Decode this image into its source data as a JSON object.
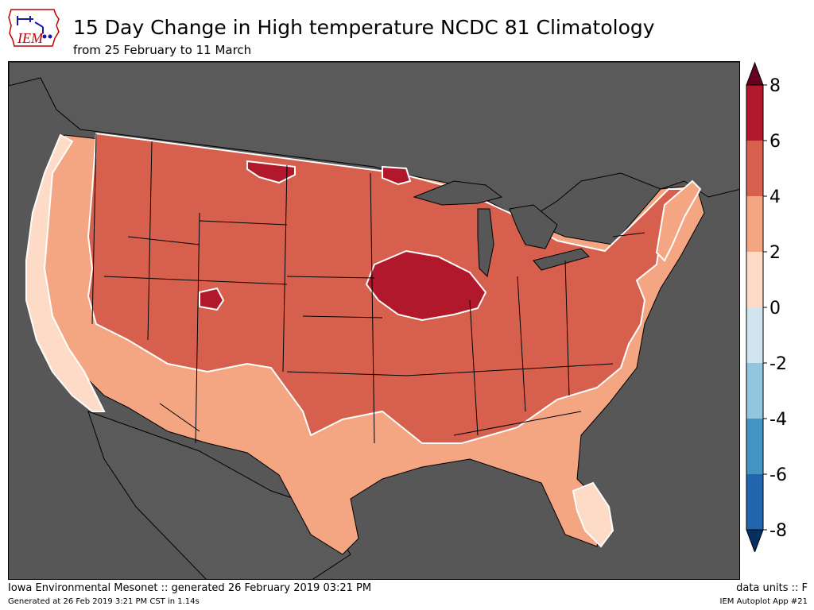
{
  "header": {
    "title": "15 Day Change in High temperature NCDC 81 Climatology",
    "subtitle": "from 25 February to 11 March"
  },
  "logo": {
    "text": "IEM",
    "color": "#c00000",
    "accent": "#1a1aa8"
  },
  "colorbar": {
    "tick_labels": [
      "8",
      "6",
      "4",
      "2",
      "0",
      "-2",
      "-4",
      "-6",
      "-8"
    ],
    "bins": [
      {
        "range": "6 to 8",
        "color": "#b2182b"
      },
      {
        "range": "4 to 6",
        "color": "#d6604d"
      },
      {
        "range": "2 to 4",
        "color": "#f4a582"
      },
      {
        "range": "0 to 2",
        "color": "#fddbc7"
      },
      {
        "range": "-2 to 0",
        "color": "#d1e5f0"
      },
      {
        "range": "-4 to -2",
        "color": "#92c5de"
      },
      {
        "range": "-6 to -4",
        "color": "#4393c3"
      },
      {
        "range": "-8 to -6",
        "color": "#2166ac"
      }
    ],
    "over_color": "#67001f",
    "under_color": "#053061"
  },
  "map": {
    "background": "#575757",
    "regions": [
      {
        "name": "pacific-coast",
        "range": "0 to 2",
        "color": "#fddbc7"
      },
      {
        "name": "west-and-south",
        "range": "2 to 4",
        "color": "#f4a582"
      },
      {
        "name": "interior",
        "range": "4 to 6",
        "color": "#d6604d"
      },
      {
        "name": "iowa-illinois-maximum",
        "range": "6 to 8",
        "color": "#b2182b"
      },
      {
        "name": "montana-dakota-border-maximum",
        "range": "6 to 8",
        "color": "#b2182b"
      },
      {
        "name": "northeast-minnesota-maximum",
        "range": "6 to 8",
        "color": "#b2182b"
      },
      {
        "name": "northern-utah-maximum",
        "range": "6 to 8",
        "color": "#b2182b"
      },
      {
        "name": "new-england-coast",
        "range": "2 to 4",
        "color": "#f4a582"
      },
      {
        "name": "florida",
        "range": "0 to 2",
        "color": "#fddbc7"
      }
    ]
  },
  "footer": {
    "left": "Iowa Environmental Mesonet :: generated 26 February 2019 03:21 PM",
    "right": "data units :: F",
    "small_left": "Generated at 26 Feb 2019 3:21 PM CST in 1.14s",
    "small_right": "IEM Autoplot App #21"
  }
}
